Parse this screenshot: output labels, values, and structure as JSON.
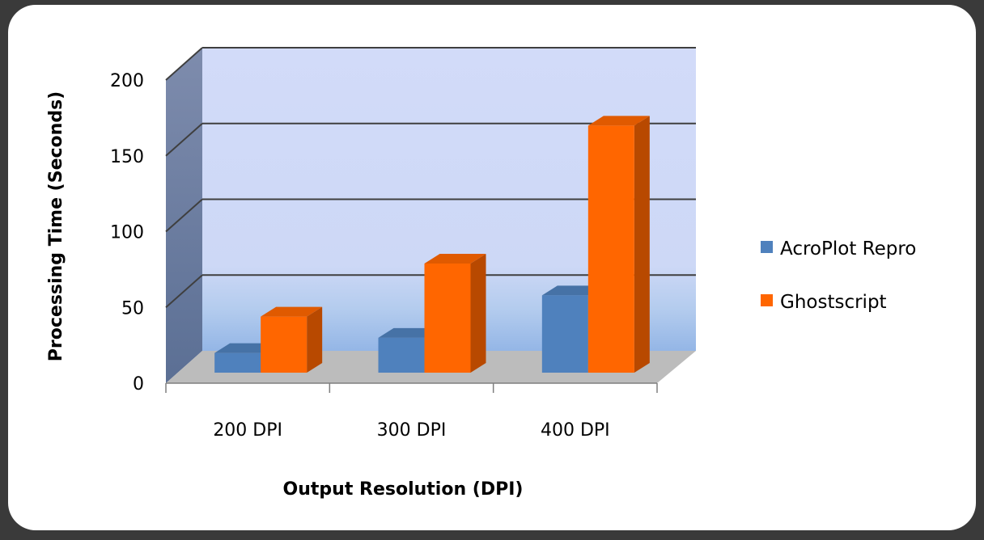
{
  "chart_data": {
    "type": "bar",
    "style": "3d-clustered-column",
    "title": "",
    "xlabel": "Output Resolution (DPI)",
    "ylabel": "Processing Time (Seconds)",
    "categories": [
      "200  DPI",
      "300  DPI",
      "400  DPI"
    ],
    "series": [
      {
        "name": "AcroPlot Repro",
        "values": [
          13,
          23,
          51
        ],
        "color": "#4f81bd"
      },
      {
        "name": "Ghostscript",
        "values": [
          37,
          72,
          163
        ],
        "color": "#ff6600"
      }
    ],
    "ylim": [
      0,
      200
    ],
    "yticks": [
      0,
      50,
      100,
      150,
      200
    ],
    "grid": true,
    "legend": "right"
  }
}
